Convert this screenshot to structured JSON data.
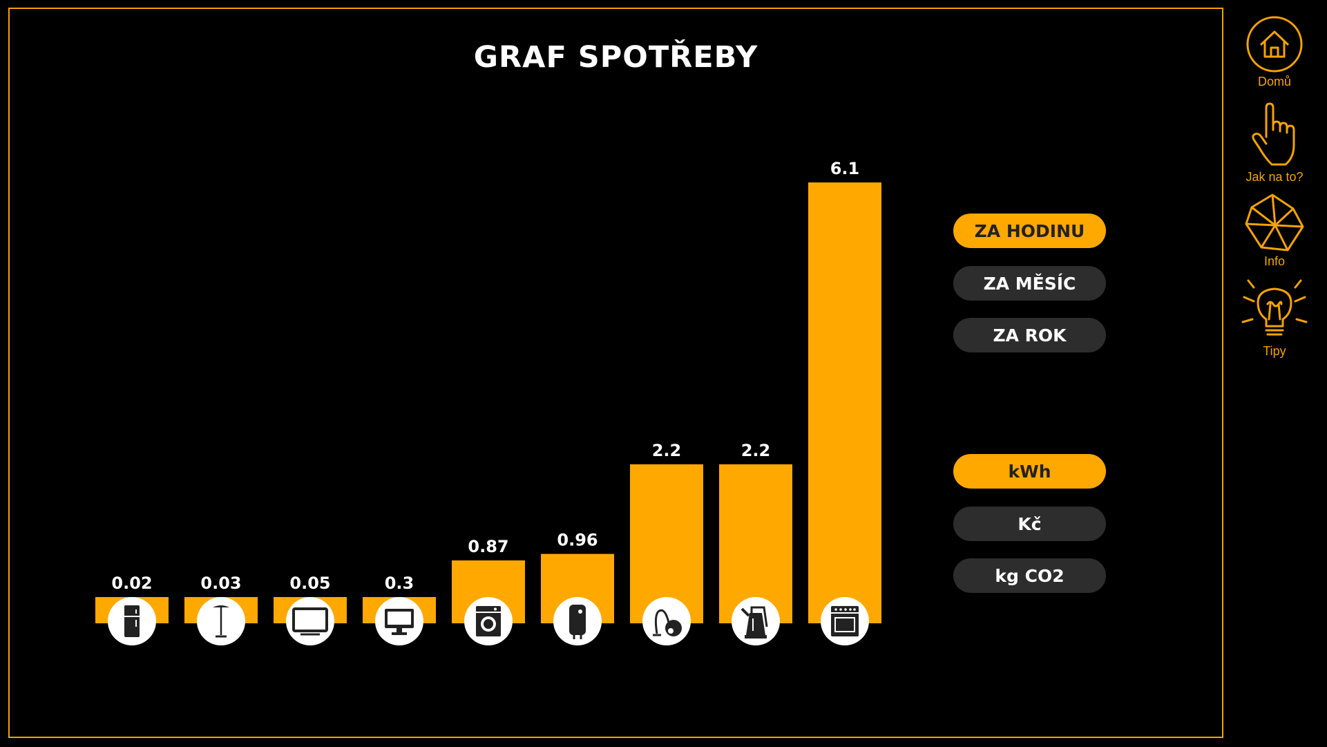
{
  "title": "GRAF SPOTŘEBY",
  "chart_data": {
    "type": "bar",
    "title": "GRAF SPOTŘEBY",
    "unit": "kWh",
    "categories": [
      "fridge-icon",
      "floor-lamp-icon",
      "tv-icon",
      "monitor-icon",
      "washing-machine-icon",
      "water-heater-icon",
      "vacuum-cleaner-icon",
      "kettle-icon",
      "oven-icon"
    ],
    "values": [
      0.02,
      0.03,
      0.05,
      0.3,
      0.87,
      0.96,
      2.2,
      2.2,
      6.1
    ],
    "value_labels": [
      "0.02",
      "0.03",
      "0.05",
      "0.3",
      "0.87",
      "0.96",
      "2.2",
      "2.2",
      "6.1"
    ],
    "bar_color": "#ffa800",
    "grid": false,
    "axes_visible": false
  },
  "period_options": [
    {
      "label": "ZA HODINU",
      "active": true
    },
    {
      "label": "ZA MĚSÍC",
      "active": false
    },
    {
      "label": "ZA ROK",
      "active": false
    }
  ],
  "unit_options": [
    {
      "label": "kWh",
      "active": true
    },
    {
      "label": "Kč",
      "active": false
    },
    {
      "label": "kg CO2",
      "active": false
    }
  ],
  "nav": {
    "home": {
      "label": "Domů",
      "icon": "home-icon"
    },
    "howto": {
      "label": "Jak na to?",
      "icon": "hand-pointer-icon"
    },
    "info": {
      "label": "Info",
      "icon": "polyhedron-icon"
    },
    "tips": {
      "label": "Tipy",
      "icon": "lightbulb-icon"
    }
  },
  "colors": {
    "accent": "#ffa800",
    "frame": "#f5a300",
    "inactive_pill": "#2d2d2d",
    "background": "#000000"
  }
}
